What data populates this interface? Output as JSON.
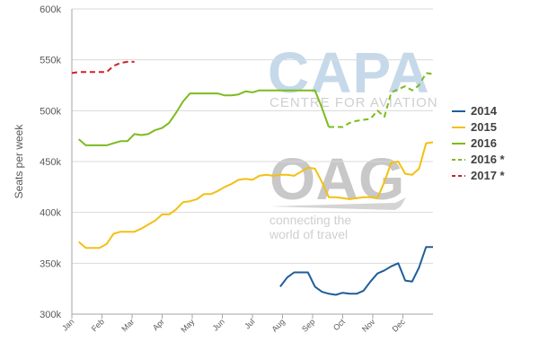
{
  "watermarks": {
    "capa_logo": "CAPA",
    "capa_subtitle": "CENTRE FOR AVIATION",
    "oag_logo": "OAG",
    "oag_tagline_1": "connecting the",
    "oag_tagline_2": "world of travel"
  },
  "colors": {
    "2014": "#1f5e99",
    "2015": "#f2c014",
    "2016": "#7dbb1e",
    "2016 *": "#7dbb1e",
    "2017 *": "#d0202a",
    "grid": "#d9d9d9",
    "axis": "#a6a6a6"
  },
  "chart_data": {
    "type": "line",
    "title": "",
    "xlabel": "",
    "ylabel": "Seats per week",
    "x_ticks": [
      "Jan",
      "Feb",
      "Mar",
      "Apr",
      "May",
      "Jun",
      "Jul",
      "Aug",
      "Sep",
      "Oct",
      "Nov",
      "Dec"
    ],
    "xlim": [
      1,
      53
    ],
    "ylim": [
      300000,
      600000
    ],
    "y_ticks": [
      300000,
      350000,
      400000,
      450000,
      500000,
      550000,
      600000
    ],
    "y_tick_labels": [
      "300k",
      "350k",
      "400k",
      "450k",
      "500k",
      "550k",
      "600k"
    ],
    "grid": "horizontal",
    "legend_position": "right",
    "series": [
      {
        "name": "2014",
        "style": "solid",
        "points": [
          [
            31,
            327000
          ],
          [
            32,
            336000
          ],
          [
            33,
            341000
          ],
          [
            34,
            341000
          ],
          [
            35,
            341000
          ],
          [
            36,
            327000
          ],
          [
            37,
            322000
          ],
          [
            38,
            320000
          ],
          [
            39,
            319000
          ],
          [
            40,
            321000
          ],
          [
            41,
            320000
          ],
          [
            42,
            320000
          ],
          [
            43,
            323000
          ],
          [
            44,
            332000
          ],
          [
            45,
            340000
          ],
          [
            46,
            343000
          ],
          [
            47,
            347000
          ],
          [
            48,
            350000
          ],
          [
            49,
            333000
          ],
          [
            50,
            332000
          ],
          [
            51,
            346000
          ],
          [
            52,
            366000
          ],
          [
            53,
            366000
          ]
        ]
      },
      {
        "name": "2015",
        "style": "solid",
        "points": [
          [
            2,
            371000
          ],
          [
            3,
            365000
          ],
          [
            4,
            365000
          ],
          [
            5,
            365000
          ],
          [
            6,
            369000
          ],
          [
            7,
            379000
          ],
          [
            8,
            381000
          ],
          [
            9,
            381000
          ],
          [
            10,
            381000
          ],
          [
            11,
            384000
          ],
          [
            12,
            388000
          ],
          [
            13,
            392000
          ],
          [
            14,
            398000
          ],
          [
            15,
            398000
          ],
          [
            16,
            403000
          ],
          [
            17,
            410000
          ],
          [
            18,
            411000
          ],
          [
            19,
            413000
          ],
          [
            20,
            418000
          ],
          [
            21,
            418000
          ],
          [
            22,
            421000
          ],
          [
            23,
            425000
          ],
          [
            24,
            428000
          ],
          [
            25,
            432000
          ],
          [
            26,
            433000
          ],
          [
            27,
            432000
          ],
          [
            28,
            436000
          ],
          [
            29,
            437000
          ],
          [
            30,
            436000
          ],
          [
            31,
            437000
          ],
          [
            32,
            437000
          ],
          [
            33,
            436000
          ],
          [
            34,
            440000
          ],
          [
            35,
            444000
          ],
          [
            36,
            443000
          ],
          [
            37,
            430000
          ],
          [
            38,
            415000
          ],
          [
            39,
            415000
          ],
          [
            40,
            414000
          ],
          [
            41,
            413000
          ],
          [
            42,
            414000
          ],
          [
            43,
            415000
          ],
          [
            44,
            415000
          ],
          [
            45,
            414000
          ],
          [
            46,
            430000
          ],
          [
            47,
            449000
          ],
          [
            48,
            450000
          ],
          [
            49,
            438000
          ],
          [
            50,
            437000
          ],
          [
            51,
            443000
          ],
          [
            52,
            468000
          ],
          [
            53,
            469000
          ]
        ]
      },
      {
        "name": "2016",
        "style": "solid",
        "points": [
          [
            2,
            472000
          ],
          [
            3,
            466000
          ],
          [
            4,
            466000
          ],
          [
            5,
            466000
          ],
          [
            6,
            466000
          ],
          [
            7,
            468000
          ],
          [
            8,
            470000
          ],
          [
            9,
            470000
          ],
          [
            10,
            477000
          ],
          [
            11,
            476000
          ],
          [
            12,
            477000
          ],
          [
            13,
            481000
          ],
          [
            14,
            483000
          ],
          [
            15,
            488000
          ],
          [
            16,
            498000
          ],
          [
            17,
            509000
          ],
          [
            18,
            517000
          ],
          [
            19,
            517000
          ],
          [
            20,
            517000
          ],
          [
            21,
            517000
          ],
          [
            22,
            517000
          ],
          [
            23,
            515000
          ],
          [
            24,
            515000
          ],
          [
            25,
            516000
          ],
          [
            26,
            519000
          ],
          [
            27,
            518000
          ],
          [
            28,
            520000
          ],
          [
            29,
            520000
          ],
          [
            30,
            520000
          ],
          [
            31,
            520000
          ],
          [
            32,
            520000
          ],
          [
            33,
            520000
          ],
          [
            34,
            520000
          ],
          [
            35,
            520000
          ],
          [
            36,
            520000
          ],
          [
            37,
            503000
          ],
          [
            38,
            484000
          ]
        ]
      },
      {
        "name": "2016 *",
        "style": "dashed",
        "points": [
          [
            38,
            484000
          ],
          [
            39,
            484000
          ],
          [
            40,
            484000
          ],
          [
            41,
            488000
          ],
          [
            42,
            490000
          ],
          [
            43,
            491000
          ],
          [
            44,
            492000
          ],
          [
            45,
            500000
          ],
          [
            46,
            494000
          ],
          [
            47,
            518000
          ],
          [
            48,
            521000
          ],
          [
            49,
            524000
          ],
          [
            50,
            520000
          ],
          [
            51,
            525000
          ],
          [
            52,
            537000
          ],
          [
            53,
            536000
          ]
        ]
      },
      {
        "name": "2017 *",
        "style": "dashed",
        "points": [
          [
            1,
            537000
          ],
          [
            2,
            538000
          ],
          [
            3,
            538000
          ],
          [
            4,
            538000
          ],
          [
            5,
            538000
          ],
          [
            6,
            538000
          ],
          [
            7,
            544000
          ],
          [
            8,
            547000
          ],
          [
            9,
            548000
          ],
          [
            10,
            548000
          ]
        ]
      }
    ]
  }
}
